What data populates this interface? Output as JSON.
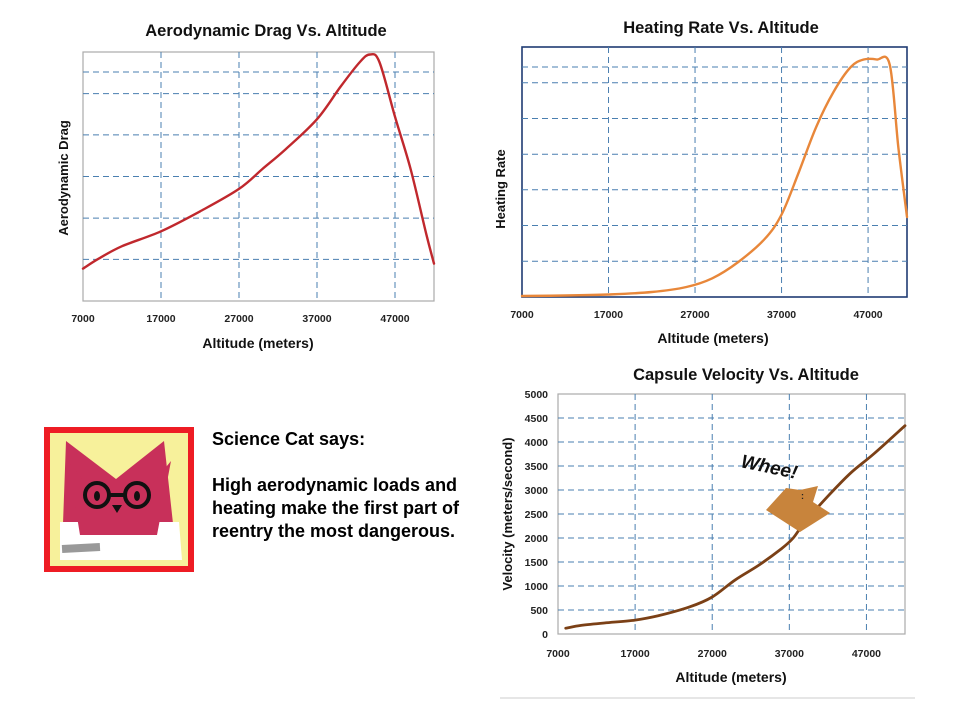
{
  "chart_data": [
    {
      "type": "line",
      "title": "Aerodynamic Drag Vs. Altitude",
      "xlabel": "Altitude (meters)",
      "ylabel": "Aerodynamic Drag",
      "xlim": [
        7000,
        52000
      ],
      "ylim": [
        0,
        1
      ],
      "xticks": [
        7000,
        17000,
        27000,
        37000,
        47000
      ],
      "xtick_labels": [
        "7000",
        "17000",
        "27000",
        "37000",
        "47000"
      ],
      "ygrid": [
        0.167,
        0.333,
        0.5,
        0.667,
        0.833,
        1.0
      ],
      "show_ytick_labels": false,
      "grid": true,
      "color": "#c0282d",
      "series": [
        {
          "name": "Aerodynamic Drag",
          "x": [
            7000,
            9000,
            12000,
            17000,
            22000,
            27000,
            30000,
            33000,
            37000,
            40000,
            42500,
            43800,
            45000,
            47000,
            49000,
            51000,
            52000
          ],
          "y": [
            0.13,
            0.17,
            0.22,
            0.28,
            0.36,
            0.45,
            0.53,
            0.61,
            0.73,
            0.86,
            0.96,
            0.99,
            0.96,
            0.74,
            0.53,
            0.27,
            0.15
          ]
        }
      ]
    },
    {
      "type": "line",
      "title": "Heating  Rate Vs. Altitude",
      "xlabel": "Altitude (meters)",
      "ylabel": "Heating Rate",
      "xlim": [
        7000,
        51500
      ],
      "ylim": [
        0,
        1
      ],
      "xticks": [
        7000,
        17000,
        27000,
        37000,
        47000
      ],
      "xtick_labels": [
        "7000",
        "17000",
        "27000",
        "37000",
        "47000"
      ],
      "ygrid": [
        0.143,
        0.286,
        0.429,
        0.571,
        0.714,
        0.857,
        1.0
      ],
      "show_ytick_labels": false,
      "grid": true,
      "color": "#e8873a",
      "series": [
        {
          "name": "Heating Rate",
          "x": [
            7000,
            12000,
            17000,
            22000,
            26000,
            29000,
            32000,
            35000,
            37000,
            39000,
            41000,
            43000,
            45000,
            46500,
            48000,
            49500,
            50500,
            51500
          ],
          "y": [
            0.004,
            0.006,
            0.01,
            0.02,
            0.04,
            0.075,
            0.14,
            0.23,
            0.33,
            0.5,
            0.68,
            0.82,
            0.92,
            0.95,
            0.95,
            0.93,
            0.6,
            0.32
          ]
        }
      ]
    },
    {
      "type": "line",
      "title": "Capsule Velocity Vs. Altitude",
      "xlabel": "Altitude (meters)",
      "ylabel": "Velocity (meters/second)",
      "xlim": [
        7000,
        52000
      ],
      "ylim": [
        0,
        5000
      ],
      "xticks": [
        7000,
        17000,
        27000,
        37000,
        47000
      ],
      "xtick_labels": [
        "7000",
        "17000",
        "27000",
        "37000",
        "47000"
      ],
      "yticks": [
        0,
        500,
        1000,
        1500,
        2000,
        2500,
        3000,
        3500,
        4000,
        4500,
        5000
      ],
      "ytick_labels": [
        "0",
        "500",
        "1000",
        "1500",
        "2000",
        "2500",
        "3000",
        "3500",
        "4000",
        "4500",
        "5000"
      ],
      "grid": true,
      "color": "#7b4016",
      "annotation": "Whee!",
      "series": [
        {
          "name": "Capsule Velocity",
          "x": [
            8000,
            10000,
            13000,
            17000,
            20000,
            24000,
            27000,
            30000,
            33000,
            36000,
            37500,
            39000,
            42000,
            45000,
            48000,
            52000
          ],
          "y": [
            120,
            180,
            230,
            290,
            380,
            560,
            770,
            1130,
            1430,
            1780,
            2000,
            2330,
            2870,
            3360,
            3760,
            4340
          ]
        }
      ]
    }
  ],
  "science_cat": {
    "heading": "Science Cat says:",
    "message": "High aerodynamic loads and heating make the first part of reentry the most dangerous."
  }
}
